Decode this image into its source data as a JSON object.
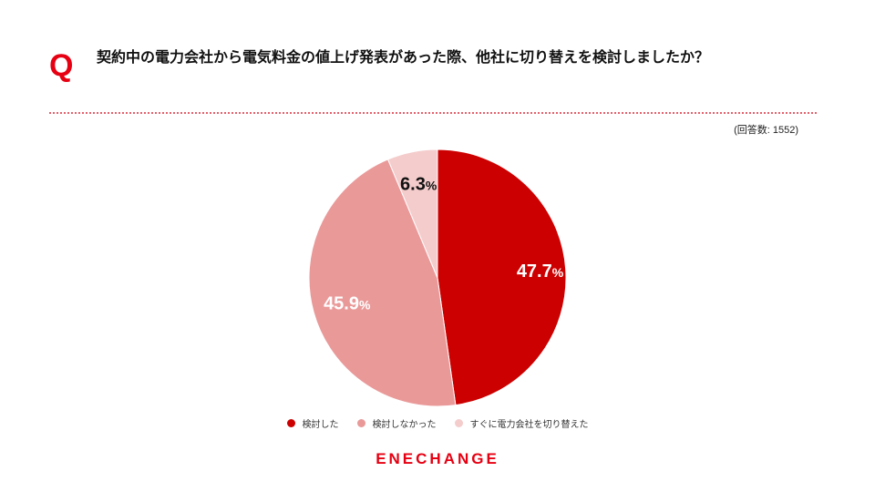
{
  "question": {
    "mark": "Q",
    "text": "契約中の電力会社から電気料金の値上げ発表があった際、他社に切り替えを検討しましたか？"
  },
  "respondents": "(回答数: 1552)",
  "colors": {
    "accent": "#e60012",
    "divider": "#e2606a"
  },
  "chart_data": {
    "type": "pie",
    "title": "",
    "unit": "%",
    "slices": [
      {
        "label": "検討した",
        "value": 47.7,
        "color": "#cc0000",
        "value_label": "47.7",
        "label_color": "#ffffff"
      },
      {
        "label": "検討しなかった",
        "value": 45.9,
        "color": "#ea9999",
        "value_label": "45.9",
        "label_color": "#ffffff"
      },
      {
        "label": "すぐに電力会社を切り替えた",
        "value": 6.3,
        "color": "#f4cccc",
        "value_label": "6.3",
        "label_color": "#111111"
      }
    ],
    "legend_position": "bottom"
  },
  "logo": "ENECHANGE"
}
